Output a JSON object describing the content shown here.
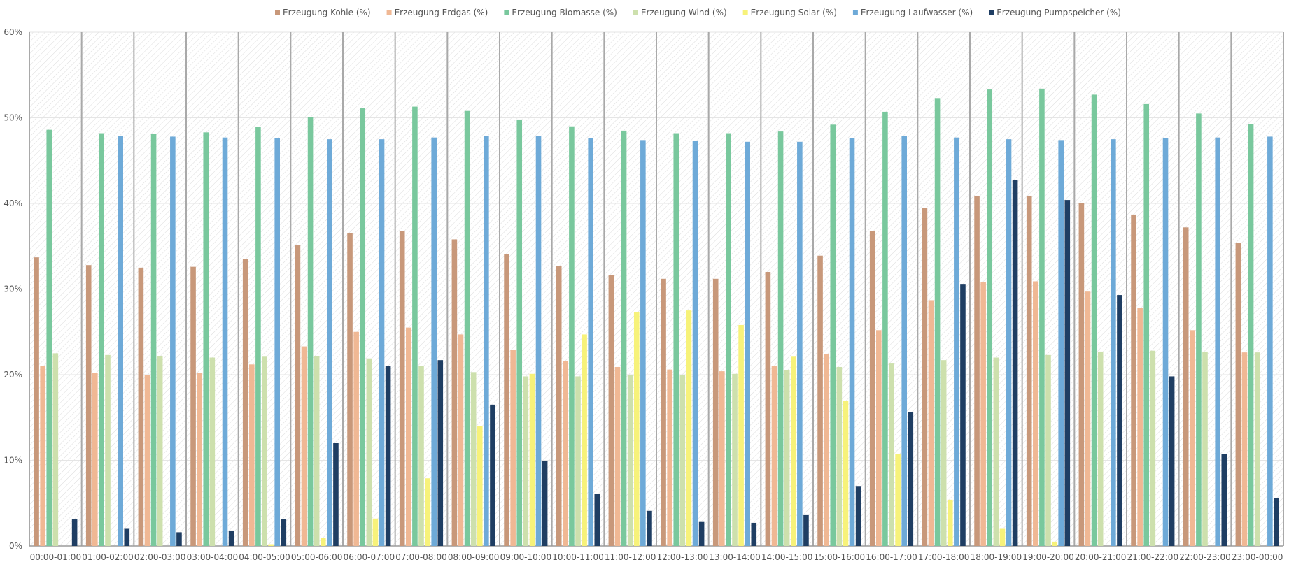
{
  "chart_data": {
    "type": "bar",
    "title": "",
    "xlabel": "",
    "ylabel": "",
    "ylim": [
      0,
      60
    ],
    "yticks": [
      "0%",
      "10%",
      "20%",
      "30%",
      "40%",
      "50%",
      "60%"
    ],
    "grid": "horizontal",
    "legend_position": "top",
    "categories": [
      "00:00-01:00",
      "01:00-02:00",
      "02:00-03:00",
      "03:00-04:00",
      "04:00-05:00",
      "05:00-06:00",
      "06:00-07:00",
      "07:00-08:00",
      "08:00-09:00",
      "09:00-10:00",
      "10:00-11:00",
      "11:00-12:00",
      "12:00-13:00",
      "13:00-14:00",
      "14:00-15:00",
      "15:00-16:00",
      "16:00-17:00",
      "17:00-18:00",
      "18:00-19:00",
      "19:00-20:00",
      "20:00-21:00",
      "21:00-22:00",
      "22:00-23:00",
      "23:00-00:00"
    ],
    "series": [
      {
        "name": "Erzeugung Kohle (%)",
        "color": "#c8987a",
        "values": [
          33.7,
          32.8,
          32.5,
          32.6,
          33.5,
          35.1,
          36.5,
          36.8,
          35.8,
          34.1,
          32.7,
          31.6,
          31.2,
          31.2,
          32.0,
          33.9,
          36.8,
          39.5,
          40.9,
          40.9,
          40.0,
          38.7,
          37.2,
          35.4
        ]
      },
      {
        "name": "Erzeugung Erdgas (%)",
        "color": "#f0b894",
        "values": [
          21.0,
          20.2,
          20.0,
          20.2,
          21.2,
          23.3,
          25.0,
          25.5,
          24.7,
          22.9,
          21.6,
          20.9,
          20.6,
          20.4,
          21.0,
          22.4,
          25.2,
          28.7,
          30.8,
          30.9,
          29.7,
          27.8,
          25.2,
          22.6
        ]
      },
      {
        "name": "Erzeugung Biomasse (%)",
        "color": "#79c89d",
        "values": [
          48.6,
          48.2,
          48.1,
          48.3,
          48.9,
          50.1,
          51.1,
          51.3,
          50.8,
          49.8,
          49.0,
          48.5,
          48.2,
          48.2,
          48.4,
          49.2,
          50.7,
          52.3,
          53.3,
          53.4,
          52.7,
          51.6,
          50.5,
          49.3
        ]
      },
      {
        "name": "Erzeugung Wind (%)",
        "color": "#cde0ad",
        "values": [
          22.5,
          22.3,
          22.2,
          22.0,
          22.1,
          22.2,
          21.9,
          21.0,
          20.3,
          19.8,
          19.8,
          20.0,
          20.0,
          20.1,
          20.5,
          20.9,
          21.3,
          21.7,
          22.0,
          22.3,
          22.7,
          22.8,
          22.7,
          22.6
        ]
      },
      {
        "name": "Erzeugung Solar (%)",
        "color": "#f7f27a",
        "values": [
          0.0,
          0.0,
          0.0,
          0.0,
          0.2,
          0.9,
          3.2,
          7.9,
          14.0,
          20.1,
          24.7,
          27.3,
          27.5,
          25.8,
          22.1,
          16.9,
          10.7,
          5.4,
          2.0,
          0.5,
          0.0,
          0.0,
          0.0,
          0.0
        ]
      },
      {
        "name": "Erzeugung Laufwasser (%)",
        "color": "#6eaad8",
        "values": [
          null,
          47.9,
          47.8,
          47.7,
          47.6,
          47.5,
          47.5,
          47.7,
          47.9,
          47.9,
          47.6,
          47.4,
          47.3,
          47.2,
          47.2,
          47.6,
          47.9,
          47.7,
          47.5,
          47.4,
          47.5,
          47.6,
          47.7,
          47.8
        ]
      },
      {
        "name": "Erzeugung Pumpspeicher (%)",
        "color": "#1f3e63",
        "values": [
          3.1,
          2.0,
          1.6,
          1.8,
          3.1,
          12.0,
          21.0,
          21.7,
          16.5,
          9.9,
          6.1,
          4.1,
          2.8,
          2.7,
          3.6,
          7.0,
          15.6,
          30.6,
          42.7,
          40.4,
          29.3,
          19.8,
          10.7,
          5.6
        ]
      }
    ]
  }
}
